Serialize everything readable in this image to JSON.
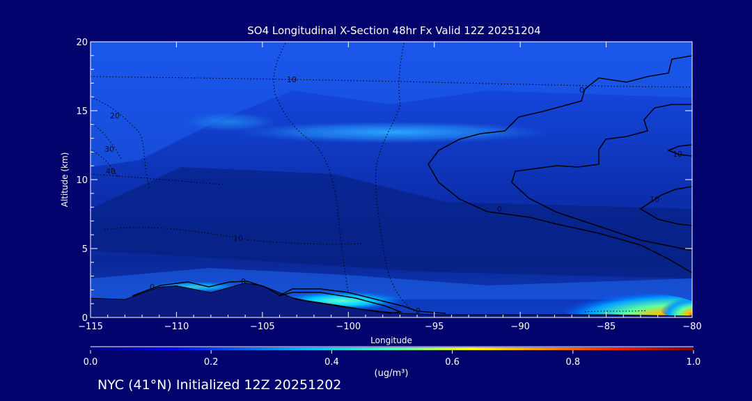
{
  "chart_data": {
    "type": "heatmap",
    "title": "SO4 Longitudinal X-Section 48hr  Fx Valid 12Z 20251204",
    "xlabel": "Longitude",
    "ylabel": "Altitude (km)",
    "xlim": [
      -115,
      -80
    ],
    "ylim": [
      0,
      20
    ],
    "x_ticks": [
      -115,
      -110,
      -105,
      -100,
      -95,
      -90,
      -85,
      -80
    ],
    "x_tick_labels": [
      "−115",
      "−110",
      "−105",
      "−100",
      "−95",
      "−90",
      "−85",
      "−80"
    ],
    "y_ticks": [
      0,
      5,
      10,
      15,
      20
    ],
    "y_tick_labels": [
      "0",
      "5",
      "10",
      "15",
      "20"
    ],
    "colorbar": {
      "label": "(ug/m³)",
      "range": [
        0.0,
        1.0
      ],
      "ticks": [
        0.0,
        0.2,
        0.4,
        0.6,
        0.8,
        1.0
      ],
      "tick_labels": [
        "0.0",
        "0.2",
        "0.4",
        "0.6",
        "0.8",
        "1.0"
      ]
    },
    "contour_labels": [
      "10",
      "20",
      "30",
      "40",
      "10",
      "0",
      "0",
      "0",
      "0",
      "0",
      "10",
      "10"
    ],
    "terrain": [
      {
        "lon": -115,
        "alt": 1.4
      },
      {
        "lon": -113,
        "alt": 1.3
      },
      {
        "lon": -111,
        "alt": 2.2
      },
      {
        "lon": -110,
        "alt": 2.3
      },
      {
        "lon": -108,
        "alt": 1.8
      },
      {
        "lon": -106,
        "alt": 2.5
      },
      {
        "lon": -105,
        "alt": 2.3
      },
      {
        "lon": -103,
        "alt": 1.3
      },
      {
        "lon": -100,
        "alt": 0.7
      },
      {
        "lon": -97,
        "alt": 0.3
      },
      {
        "lon": -95,
        "alt": 0.2
      },
      {
        "lon": -90,
        "alt": 0.2
      },
      {
        "lon": -85,
        "alt": 0.2
      },
      {
        "lon": -80,
        "alt": 0.1
      }
    ],
    "highlights": [
      {
        "lon": -98.5,
        "alt": 0.8,
        "value": 0.45
      },
      {
        "lon": -82,
        "alt": 0.7,
        "value": 0.65
      },
      {
        "lon": -80.5,
        "alt": 0.4,
        "value": 0.85
      },
      {
        "lon": -98,
        "alt": 13.3,
        "value": 0.3
      }
    ]
  },
  "footer": "NYC (41°N) Initialized 12Z 20251202"
}
